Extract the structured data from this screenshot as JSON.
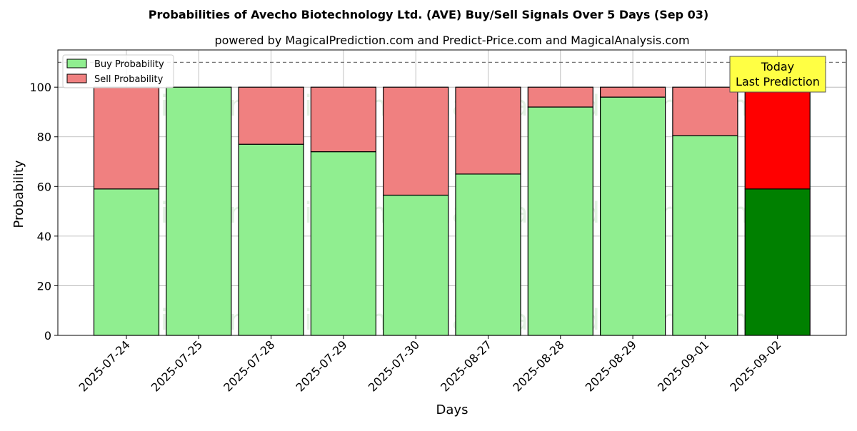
{
  "chart_data": {
    "type": "bar",
    "stacked": true,
    "title": "Probabilities of Avecho Biotechnology Ltd. (AVE) Buy/Sell Signals Over 5 Days (Sep 03)",
    "subtitle": "powered by MagicalPrediction.com and Predict-Price.com and MagicalAnalysis.com",
    "xlabel": "Days",
    "ylabel": "Probability",
    "ylim": [
      0,
      115
    ],
    "yticks": [
      0,
      20,
      40,
      60,
      80,
      100
    ],
    "reference_line": 110,
    "grid": true,
    "legend_position": "top-left",
    "categories": [
      "2025-07-24",
      "2025-07-25",
      "2025-07-28",
      "2025-07-29",
      "2025-07-30",
      "2025-08-27",
      "2025-08-28",
      "2025-08-29",
      "2025-09-01",
      "2025-09-02"
    ],
    "series": [
      {
        "name": "Buy Probability",
        "color": "#90ee90",
        "highlight_color": "#008000",
        "values": [
          59,
          100,
          77,
          74,
          56.5,
          65,
          92,
          96,
          80.5,
          59
        ]
      },
      {
        "name": "Sell Probability",
        "color": "#f08080",
        "highlight_color": "#ff0000",
        "values": [
          41,
          0,
          23,
          26,
          43.5,
          35,
          8,
          4,
          19.5,
          41
        ]
      }
    ],
    "highlight_index": 9,
    "annotation": {
      "line1": "Today",
      "line2": "Last Prediction",
      "color": "#ffff44"
    },
    "watermarks": [
      "MagicalAnalysis.com",
      "MagicalPrediction.com"
    ]
  }
}
